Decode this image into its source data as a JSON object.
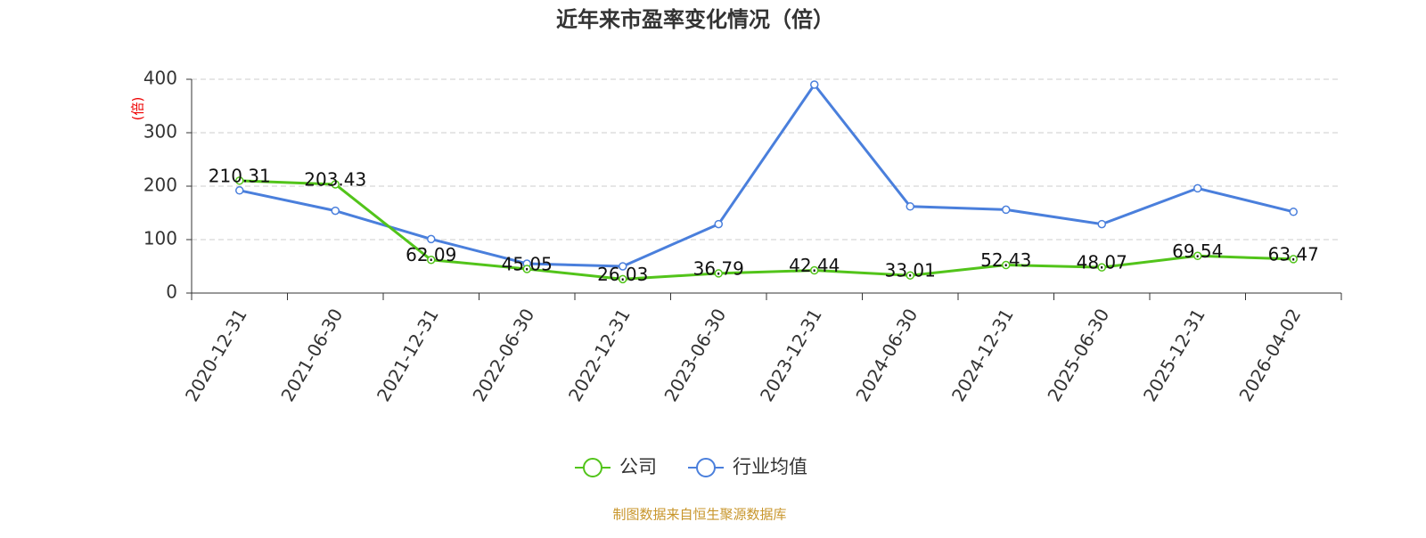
{
  "chart_data": {
    "type": "line",
    "title": "近年来市盈率变化情况（倍）",
    "y_label": "(倍)",
    "source": "制图数据来自恒生聚源数据库",
    "categories": [
      "2020-12-31",
      "2021-06-30",
      "2021-12-31",
      "2022-06-30",
      "2022-12-31",
      "2023-06-30",
      "2023-12-31",
      "2024-06-30",
      "2024-12-31",
      "2025-06-30",
      "2025-12-31",
      "2026-04-02"
    ],
    "series": [
      {
        "name": "公司",
        "color": "#52c41a",
        "values": [
          210.31,
          203.43,
          62.09,
          45.05,
          26.03,
          36.79,
          42.44,
          33.01,
          52.43,
          48.07,
          69.54,
          63.47
        ],
        "show_labels": true
      },
      {
        "name": "行业均值",
        "color": "#4a7fdc",
        "values": [
          192,
          154,
          101,
          55,
          50,
          129,
          390,
          162,
          156,
          129,
          196,
          152
        ],
        "show_labels": false
      }
    ],
    "ylim": [
      0,
      400
    ],
    "yticks": [
      0,
      100,
      200,
      300,
      400
    ],
    "grid": true
  }
}
